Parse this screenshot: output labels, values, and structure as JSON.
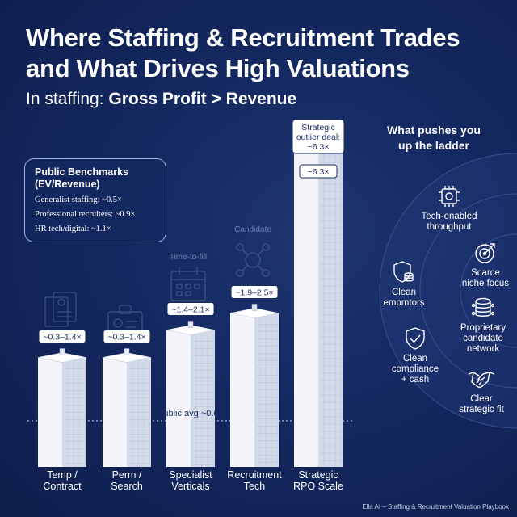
{
  "title_line1": "Where Staffing & Recruitment Trades",
  "title_line2": "and What Drives High Valuations",
  "subtitle_prefix": "In staffing: ",
  "subtitle_bold": "Gross Profit > Revenue",
  "benchmarks": {
    "title": "Public Benchmarks",
    "title2": "(EV/Revenue)",
    "items": [
      "Generalist staffing: ~0.5×",
      "Professional recruiters: ~0.9×",
      "HR tech/digital: ~1.1×"
    ]
  },
  "icon_labels": {
    "candidate": "Candidate",
    "time_to_fill": "Time-to-fill"
  },
  "chart_data": {
    "type": "bar",
    "categories": [
      "Temp / Contract",
      "Perm / Search",
      "Specialist Verticals",
      "Recruitment Tech",
      "Strategic RPO Scale"
    ],
    "category_lines": [
      [
        "Temp /",
        "Contract"
      ],
      [
        "Perm /",
        "Search"
      ],
      [
        "Specialist",
        "Verticals"
      ],
      [
        "Recruitment",
        "Tech"
      ],
      [
        "Strategic",
        "RPO Scale"
      ]
    ],
    "ranges": [
      [
        0.3,
        1.4
      ],
      [
        0.3,
        1.4
      ],
      [
        1.4,
        2.1
      ],
      [
        1.9,
        2.5
      ],
      [
        6.3,
        6.3
      ]
    ],
    "value_labels": [
      "~0.3–1.4×",
      "~0.3–1.4×",
      "~1.4–2.1×",
      "~1.9–2.5×",
      "~6.3×"
    ],
    "reference_line": {
      "value": 0.6,
      "label": "Public avg ~0.6×"
    },
    "callout": {
      "line1": "Strategic",
      "line2": "outlier deal:",
      "line3": "~6.3×"
    }
  },
  "drivers_title_line1": "What pushes you",
  "drivers_title_line2": "up the ladder",
  "drivers": [
    {
      "name": "tech-enabled",
      "lines": [
        "Tech-enabled",
        "throughput"
      ],
      "icon": "chip-gear-icon"
    },
    {
      "name": "scarce-niche",
      "lines": [
        "Scarce",
        "niche focus"
      ],
      "icon": "target-icon"
    },
    {
      "name": "clean-empmtors",
      "lines": [
        "Clean",
        "empmtors"
      ],
      "icon": "shield-database-icon"
    },
    {
      "name": "proprietary-network",
      "lines": [
        "Proprietary",
        "candidate",
        "network"
      ],
      "icon": "database-icon"
    },
    {
      "name": "clean-compliance",
      "lines": [
        "Clean",
        "compliance",
        "+ cash"
      ],
      "icon": "shield-check-icon"
    },
    {
      "name": "clear-fit",
      "lines": [
        "Clear",
        "strategic fit"
      ],
      "icon": "handshake-icon"
    }
  ],
  "footer": "Ella AI – Staffing & Recruitment Valuation Playbook",
  "colors": {
    "bg": "#142860",
    "bar": "#eef1f8",
    "accent": "#ffffff"
  }
}
